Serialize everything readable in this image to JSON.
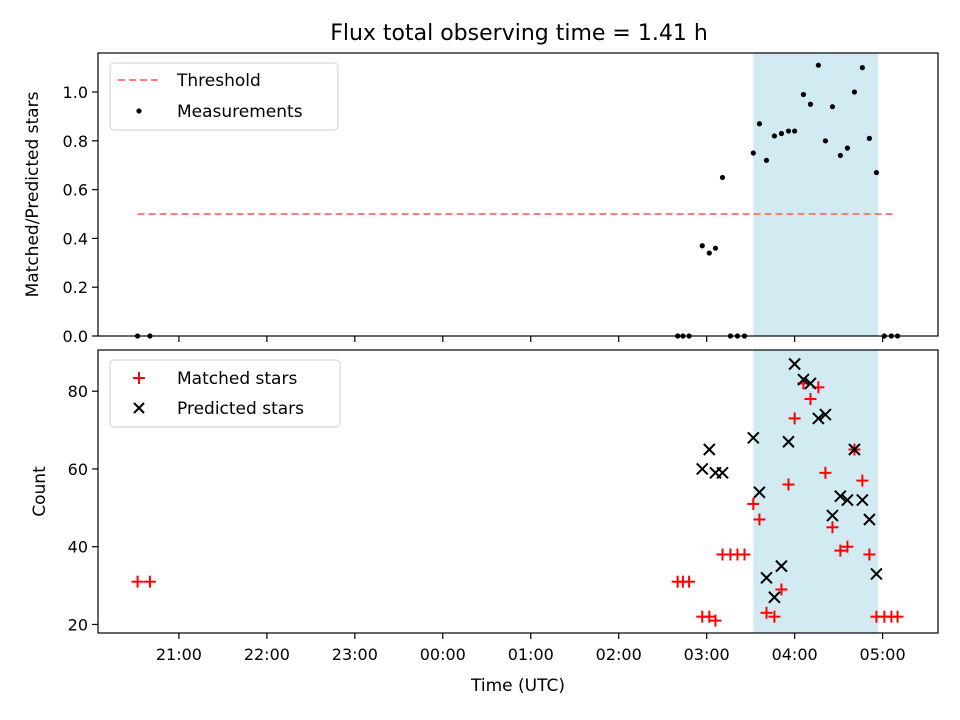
{
  "chart_data": {
    "title": "Flux total observing time = 1.41 h",
    "xlabel": "Time (UTC)",
    "x_units": "hours since 00:00 UTC",
    "xlim": [
      -3.92,
      5.63
    ],
    "xticks": [
      {
        "value": -3,
        "label": "21:00"
      },
      {
        "value": -2,
        "label": "22:00"
      },
      {
        "value": -1,
        "label": "23:00"
      },
      {
        "value": 0,
        "label": "00:00"
      },
      {
        "value": 1,
        "label": "01:00"
      },
      {
        "value": 2,
        "label": "02:00"
      },
      {
        "value": 3,
        "label": "03:00"
      },
      {
        "value": 4,
        "label": "04:00"
      },
      {
        "value": 5,
        "label": "05:00"
      }
    ],
    "highlight_span": {
      "x0": 3.53,
      "x1": 4.95,
      "color": "#add8e6"
    },
    "panels": [
      {
        "type": "scatter",
        "ylabel": "Matched/Predicted stars",
        "ylim": [
          0,
          1.16
        ],
        "yticks": [
          "0.0",
          "0.2",
          "0.4",
          "0.6",
          "0.8",
          "1.0"
        ],
        "yticks_values": [
          0,
          0.2,
          0.4,
          0.6,
          0.8,
          1.0
        ],
        "legend": [
          "Threshold",
          "Measurements"
        ],
        "threshold": {
          "name": "Threshold",
          "y": 0.5,
          "x0": -3.47,
          "x1": 5.13,
          "color": "#ff7f7f"
        },
        "series": [
          {
            "name": "Measurements",
            "color": "#000000",
            "x": [
              -3.47,
              -3.33,
              2.67,
              2.73,
              2.8,
              2.95,
              3.03,
              3.1,
              3.18,
              3.27,
              3.35,
              3.43,
              3.53,
              3.6,
              3.68,
              3.77,
              3.85,
              3.93,
              4.0,
              4.1,
              4.18,
              4.27,
              4.35,
              4.43,
              4.52,
              4.6,
              4.68,
              4.77,
              4.85,
              4.93,
              5.02,
              5.1,
              5.17
            ],
            "y": [
              0,
              0,
              0,
              0,
              0,
              0.37,
              0.34,
              0.36,
              0.65,
              0,
              0,
              0,
              0.75,
              0.87,
              0.72,
              0.82,
              0.83,
              0.84,
              0.84,
              0.99,
              0.95,
              1.11,
              0.8,
              0.94,
              0.74,
              0.77,
              1.0,
              1.1,
              0.81,
              0.67,
              0,
              0,
              0
            ]
          }
        ]
      },
      {
        "type": "scatter",
        "ylabel": "Count",
        "ylim": [
          17.8,
          90.6
        ],
        "yticks": [
          "20",
          "40",
          "60",
          "80"
        ],
        "yticks_values": [
          20,
          40,
          60,
          80
        ],
        "legend": [
          "Matched stars",
          "Predicted stars"
        ],
        "series": [
          {
            "name": "Matched stars",
            "marker": "plus",
            "color": "#ff0000",
            "x": [
              -3.47,
              -3.33,
              2.67,
              2.73,
              2.8,
              2.95,
              3.03,
              3.1,
              3.18,
              3.27,
              3.35,
              3.43,
              3.53,
              3.6,
              3.68,
              3.77,
              3.85,
              3.93,
              4.0,
              4.1,
              4.18,
              4.27,
              4.35,
              4.43,
              4.52,
              4.6,
              4.68,
              4.77,
              4.85,
              4.93,
              5.02,
              5.1,
              5.17
            ],
            "y": [
              31,
              31,
              31,
              31,
              31,
              22,
              22,
              21,
              38,
              38,
              38,
              38,
              51,
              47,
              23,
              22,
              29,
              56,
              73,
              82,
              78,
              81,
              59,
              45,
              39,
              40,
              65,
              57,
              38,
              22,
              22,
              22,
              22
            ]
          },
          {
            "name": "Predicted stars",
            "marker": "x",
            "color": "#000000",
            "x": [
              2.95,
              3.03,
              3.1,
              3.18,
              3.53,
              3.6,
              3.68,
              3.77,
              3.85,
              3.93,
              4.0,
              4.1,
              4.18,
              4.27,
              4.35,
              4.43,
              4.52,
              4.6,
              4.68,
              4.77,
              4.85,
              4.93
            ],
            "y": [
              60,
              65,
              59,
              59,
              68,
              54,
              32,
              27,
              35,
              67,
              87,
              83,
              82,
              73,
              74,
              48,
              53,
              52,
              65,
              52,
              47,
              33
            ]
          }
        ]
      }
    ]
  }
}
